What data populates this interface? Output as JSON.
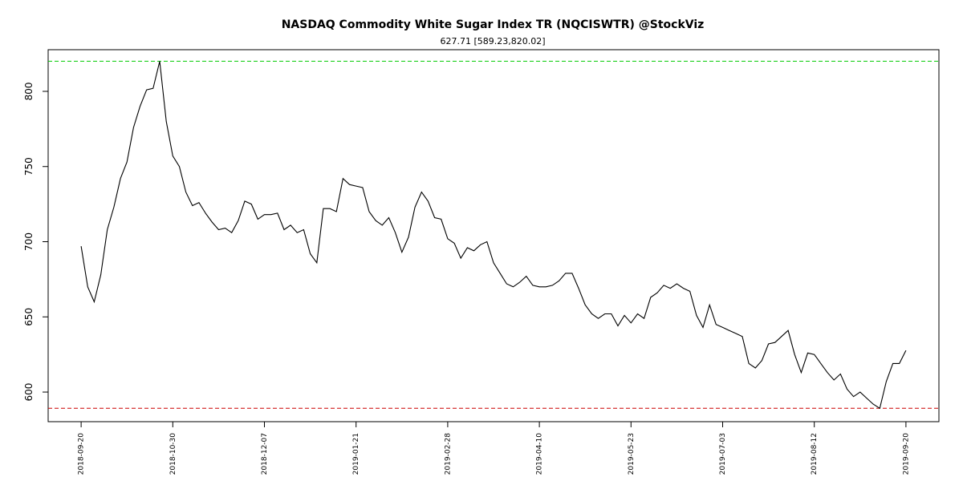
{
  "chart_data": {
    "type": "line",
    "title": "NASDAQ Commodity White Sugar Index TR (NQCISWTR) @StockViz",
    "subtitle": "627.71 [589.23,820.02]",
    "categories": [
      "2018-09-20",
      null,
      null,
      null,
      null,
      null,
      null,
      null,
      null,
      null,
      null,
      null,
      null,
      null,
      "2018-10-30",
      null,
      null,
      null,
      null,
      null,
      null,
      null,
      null,
      null,
      null,
      null,
      null,
      null,
      "2018-12-07",
      null,
      null,
      null,
      null,
      null,
      null,
      null,
      null,
      null,
      null,
      null,
      null,
      null,
      "2019-01-21",
      null,
      null,
      null,
      null,
      null,
      null,
      null,
      null,
      null,
      null,
      null,
      null,
      null,
      "2019-02-28",
      null,
      null,
      null,
      null,
      null,
      null,
      null,
      null,
      null,
      null,
      null,
      null,
      null,
      "2019-04-10",
      null,
      null,
      null,
      null,
      null,
      null,
      null,
      null,
      null,
      null,
      null,
      null,
      null,
      "2019-05-23",
      null,
      null,
      null,
      null,
      null,
      null,
      null,
      null,
      null,
      null,
      null,
      null,
      null,
      "2019-07-03",
      null,
      null,
      null,
      null,
      null,
      null,
      null,
      null,
      null,
      null,
      null,
      null,
      null,
      "2019-08-12",
      null,
      null,
      null,
      null,
      null,
      null,
      null,
      null,
      null,
      null,
      null,
      null,
      null,
      "2019-09-20"
    ],
    "values": [
      697,
      670,
      660,
      678,
      708,
      723,
      742,
      753,
      776,
      790,
      801,
      802,
      820.02,
      780,
      757,
      750,
      733,
      724,
      726,
      719,
      713,
      708,
      709,
      706,
      714,
      727,
      725,
      715,
      718,
      718,
      719,
      708,
      711,
      706,
      708,
      692,
      686,
      722,
      722,
      720,
      742,
      738,
      737,
      736,
      720,
      714,
      711,
      716,
      706,
      693,
      703,
      723,
      733,
      727,
      716,
      715,
      702,
      699,
      689,
      696,
      694,
      698,
      700,
      686,
      679,
      672,
      670,
      673,
      677,
      671,
      670,
      670,
      671,
      674,
      679,
      679,
      669,
      658,
      652,
      649,
      652,
      652,
      644,
      651,
      646,
      652,
      649,
      663,
      666,
      671,
      669,
      672,
      669,
      667,
      651,
      643,
      658,
      645,
      643,
      641,
      639,
      637,
      619,
      616,
      621,
      632,
      633,
      637,
      641,
      625,
      613,
      626,
      625,
      619,
      613,
      608,
      612,
      602,
      597,
      600,
      596,
      592,
      589.23,
      607,
      619,
      619,
      627.71
    ],
    "color": "#000000",
    "ylim": [
      580.3,
      827.7
    ],
    "yticks": [
      600,
      650,
      700,
      750,
      800
    ],
    "reference_lines": [
      {
        "value": 820.02,
        "color": "#00cc00"
      },
      {
        "value": 589.23,
        "color": "#cc0000"
      }
    ]
  }
}
